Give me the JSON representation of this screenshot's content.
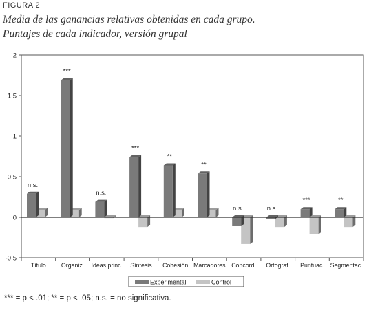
{
  "figure_label": "FIGURA 2",
  "title_line1": "Media de las ganancias relativas obtenidas en cada grupo.",
  "title_line2": "Puntajes de cada indicador, versión grupal",
  "footnote": "*** = p < .01; ** = p < .05; n.s. = no significativa.",
  "colors": {
    "experimental": "#7a7a7a",
    "control": "#c4c4c4",
    "axis": "#555555"
  },
  "chart_data": {
    "type": "bar",
    "categories": [
      "Título",
      "Organiz.",
      "Ideas princ.",
      "Síntesis",
      "Cohesión",
      "Marcadores",
      "Concord.",
      "Ortograf.",
      "Puntuac.",
      "Segmentac."
    ],
    "series": [
      {
        "name": "Experimental",
        "values": [
          0.29,
          1.69,
          0.19,
          0.74,
          0.64,
          0.54,
          -0.11,
          -0.02,
          0.1,
          0.1
        ]
      },
      {
        "name": "Control",
        "values": [
          0.09,
          0.09,
          0.0,
          -0.12,
          0.09,
          0.09,
          -0.33,
          -0.12,
          -0.21,
          -0.12
        ]
      }
    ],
    "annotations": [
      "n.s.",
      "***",
      "n.s.",
      "***",
      "**",
      "**",
      "n.s.",
      "n.s.",
      "***",
      "**"
    ],
    "ylim": [
      -0.5,
      2
    ],
    "yticks": [
      "-0.5",
      "0",
      "0.5",
      "1",
      "1.5",
      "2"
    ],
    "ytick_values": [
      -0.5,
      0,
      0.5,
      1,
      1.5,
      2
    ],
    "legend_position": "bottom-center",
    "grid": false
  }
}
